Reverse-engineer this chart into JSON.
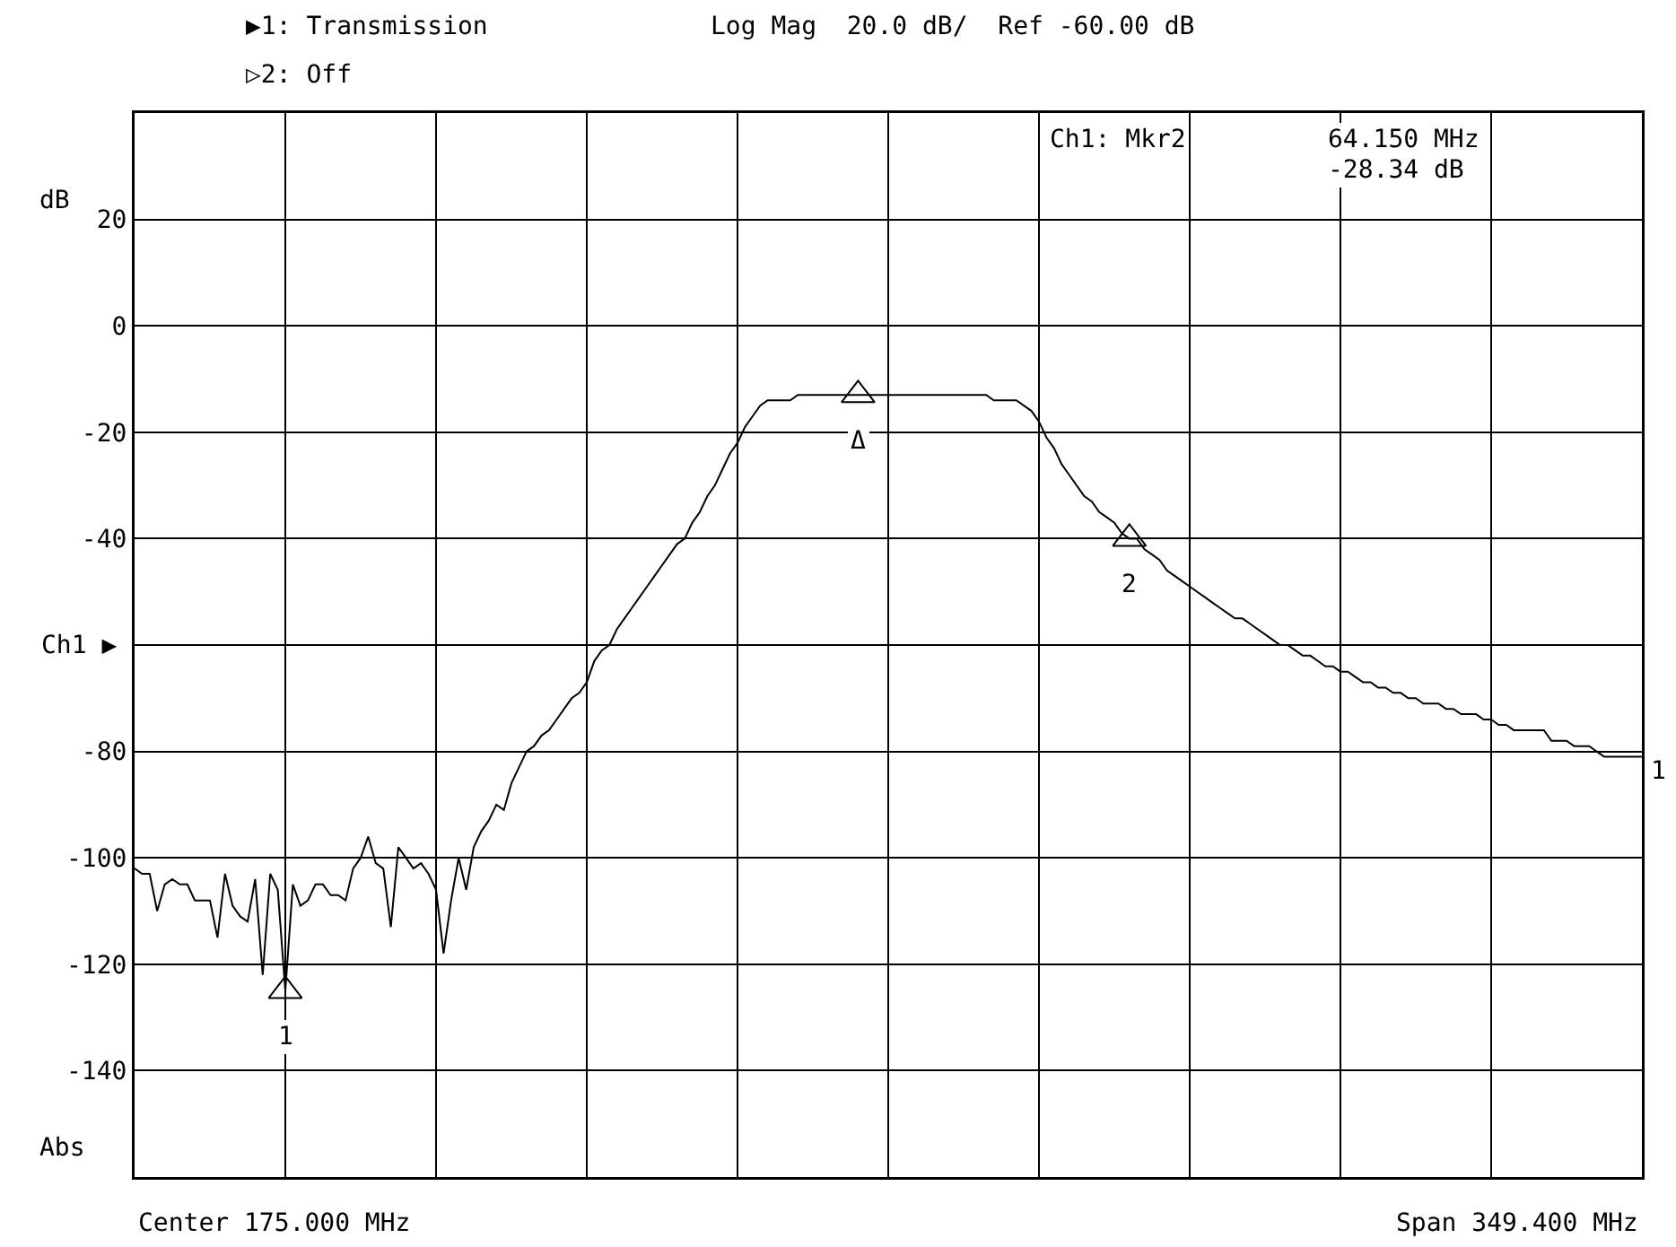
{
  "chart_data": {
    "type": "line",
    "ylabel": "dB",
    "categories": [
      null,
      null,
      null,
      null,
      null,
      null,
      null,
      null,
      null,
      null,
      null,
      null,
      null,
      null,
      null,
      null,
      null,
      null,
      null,
      null,
      null,
      null,
      null,
      null,
      null,
      null,
      null,
      null,
      null,
      null,
      null,
      null,
      null,
      null,
      null,
      null,
      null,
      null,
      null,
      null,
      null,
      null,
      null,
      null,
      null,
      null,
      null,
      null,
      null,
      null,
      null,
      null,
      null,
      null,
      null,
      null,
      null,
      null,
      null,
      null,
      null,
      null,
      null,
      null,
      null,
      null,
      null,
      null,
      null,
      null,
      null,
      null,
      null,
      null,
      null,
      null,
      null,
      null,
      null,
      null,
      null,
      null,
      null,
      null,
      null,
      null,
      null,
      null,
      null,
      null,
      null,
      null,
      null,
      null,
      null,
      null,
      null,
      null,
      null,
      null,
      null,
      null,
      null,
      null,
      null,
      null,
      null,
      null,
      null,
      null,
      null,
      null,
      null,
      null,
      null,
      null,
      null,
      null,
      null,
      null,
      null,
      null,
      null,
      null,
      null,
      null,
      null,
      null,
      null,
      null,
      null,
      null,
      null,
      null,
      null,
      null,
      null,
      null,
      null,
      null,
      null,
      null,
      null,
      null,
      null,
      null,
      null,
      null,
      null,
      null,
      null,
      null,
      null,
      null,
      null,
      null,
      null,
      null,
      null,
      null,
      null,
      null,
      null,
      null,
      null,
      null,
      null,
      null,
      null,
      null,
      null,
      null,
      null,
      null,
      null,
      null,
      null,
      null,
      null,
      null,
      null,
      null,
      null,
      null,
      null,
      null,
      null,
      null,
      null,
      null,
      null,
      null,
      null,
      null,
      null,
      null,
      null,
      null,
      null,
      null,
      null
    ],
    "series": [
      {
        "name": "1",
        "color": "#000000",
        "values": [
          -102,
          -103,
          -103,
          -110,
          -105,
          -104,
          -105,
          -105,
          -108,
          -108,
          -108,
          -115,
          -103,
          -109,
          -111,
          -112,
          -104,
          -122,
          -103,
          -106,
          -125,
          -105,
          -109,
          -108,
          -105,
          -105,
          -107,
          -107,
          -108,
          -102,
          -100,
          -96,
          -101,
          -102,
          -113,
          -98,
          -100,
          -102,
          -101,
          -103,
          -106,
          -118,
          -108,
          -100,
          -106,
          -98,
          -95,
          -93,
          -90,
          -91,
          -86,
          -83,
          -80,
          -79,
          -77,
          -76,
          -74,
          -72,
          -70,
          -69,
          -67,
          -63,
          -61,
          -60,
          -57,
          -55,
          -53,
          -51,
          -49,
          -47,
          -45,
          -43,
          -41,
          -40,
          -37,
          -35,
          -32,
          -30,
          -27,
          -24,
          -22,
          -19,
          -17,
          -15,
          -14,
          -14,
          -14,
          -14,
          -13,
          -13,
          -13,
          -13,
          -13,
          -13,
          -13,
          -13,
          -13,
          -13,
          -13,
          -13,
          -13,
          -13,
          -13,
          -13,
          -13,
          -13,
          -13,
          -13,
          -13,
          -13,
          -13,
          -13,
          -13,
          -13,
          -14,
          -14,
          -14,
          -14,
          -15,
          -16,
          -18,
          -21,
          -23,
          -26,
          -28,
          -30,
          -32,
          -33,
          -35,
          -36,
          -37,
          -39,
          -40,
          -40,
          -42,
          -43,
          -44,
          -46,
          -47,
          -48,
          -49,
          -50,
          -51,
          -52,
          -53,
          -54,
          -55,
          -55,
          -56,
          -57,
          -58,
          -59,
          -60,
          -60,
          -61,
          -62,
          -62,
          -63,
          -64,
          -64,
          -65,
          -65,
          -66,
          -67,
          -67,
          -68,
          -68,
          -69,
          -69,
          -70,
          -70,
          -71,
          -71,
          -71,
          -72,
          -72,
          -73,
          -73,
          -73,
          -74,
          -74,
          -75,
          -75,
          -76,
          -76,
          -76,
          -76,
          -76,
          -78,
          -78,
          -78,
          -79,
          -79,
          -79,
          -80,
          -81,
          -81,
          -81,
          -81,
          -81,
          -81
        ]
      },
      {
        "type": "scatter",
        "marker": "triangle",
        "color": "#000000",
        "values": [
          null,
          null,
          null,
          null,
          null,
          null,
          null,
          null,
          null,
          null,
          null,
          null,
          null,
          null,
          null,
          null,
          null,
          null,
          null,
          null,
          -125,
          null,
          null,
          null,
          null,
          null,
          null,
          null,
          null,
          null,
          null,
          null,
          null,
          null,
          null,
          null,
          null,
          null,
          null,
          null,
          null,
          null,
          null,
          null,
          null,
          null,
          null,
          null,
          null,
          null,
          null,
          null,
          null,
          null,
          null,
          null,
          null,
          null,
          null,
          null,
          null,
          null,
          null,
          null,
          null,
          null,
          null,
          null,
          null,
          null,
          null,
          null,
          null,
          null,
          null,
          null,
          null,
          null,
          null,
          null,
          null,
          null,
          null,
          null,
          null,
          null,
          null,
          null,
          null,
          null,
          null,
          null,
          null,
          null,
          null,
          null,
          -13,
          null,
          null,
          null,
          null,
          null,
          null,
          null,
          null,
          null,
          null,
          null,
          null,
          null,
          null,
          null,
          null,
          null,
          null,
          null,
          null,
          null,
          null,
          null,
          null,
          null,
          null,
          null,
          null,
          null,
          null,
          null,
          null,
          null,
          null,
          null,
          -40,
          null,
          null,
          null,
          null,
          null,
          null,
          null,
          null,
          null,
          null,
          null,
          null,
          null,
          null,
          null,
          null,
          null,
          null,
          null,
          null,
          null,
          null,
          null,
          null,
          null,
          null,
          null,
          null,
          null,
          null,
          null,
          null,
          null,
          null,
          null,
          null,
          null,
          null,
          null,
          null,
          null,
          null,
          null,
          null,
          null,
          null,
          null,
          null,
          null,
          null,
          null,
          null,
          null,
          null,
          null,
          null,
          null,
          null,
          null,
          null,
          null,
          null,
          null,
          null,
          null,
          null,
          null,
          null
        ]
      }
    ],
    "ylim": [
      -160,
      40
    ],
    "yticks": [
      {
        "value": 40,
        "label": null
      },
      20,
      0,
      -20,
      -40,
      {
        "value": -60,
        "label": null
      },
      -80,
      -100,
      -120,
      -140,
      {
        "value": -160,
        "label": null
      }
    ],
    "grid": true,
    "legend": false,
    "marker": "none",
    "line_style": "solid",
    "annotations": [
      "▶1: Transmission",
      "Log Mag  20.0 dB/  Ref -60.00 dB",
      "▷2: Off",
      "Ch1: Mkr2",
      "64.150 MHz",
      "-28.34 dB",
      "Abs",
      "Center 175.000 MHz",
      "Span 349.400 MHz",
      "Ch1 ▶",
      {
        "text": "1",
        "y": -125
      },
      {
        "text": "Δ",
        "y": -13
      },
      {
        "text": "2",
        "y": -40
      }
    ]
  }
}
